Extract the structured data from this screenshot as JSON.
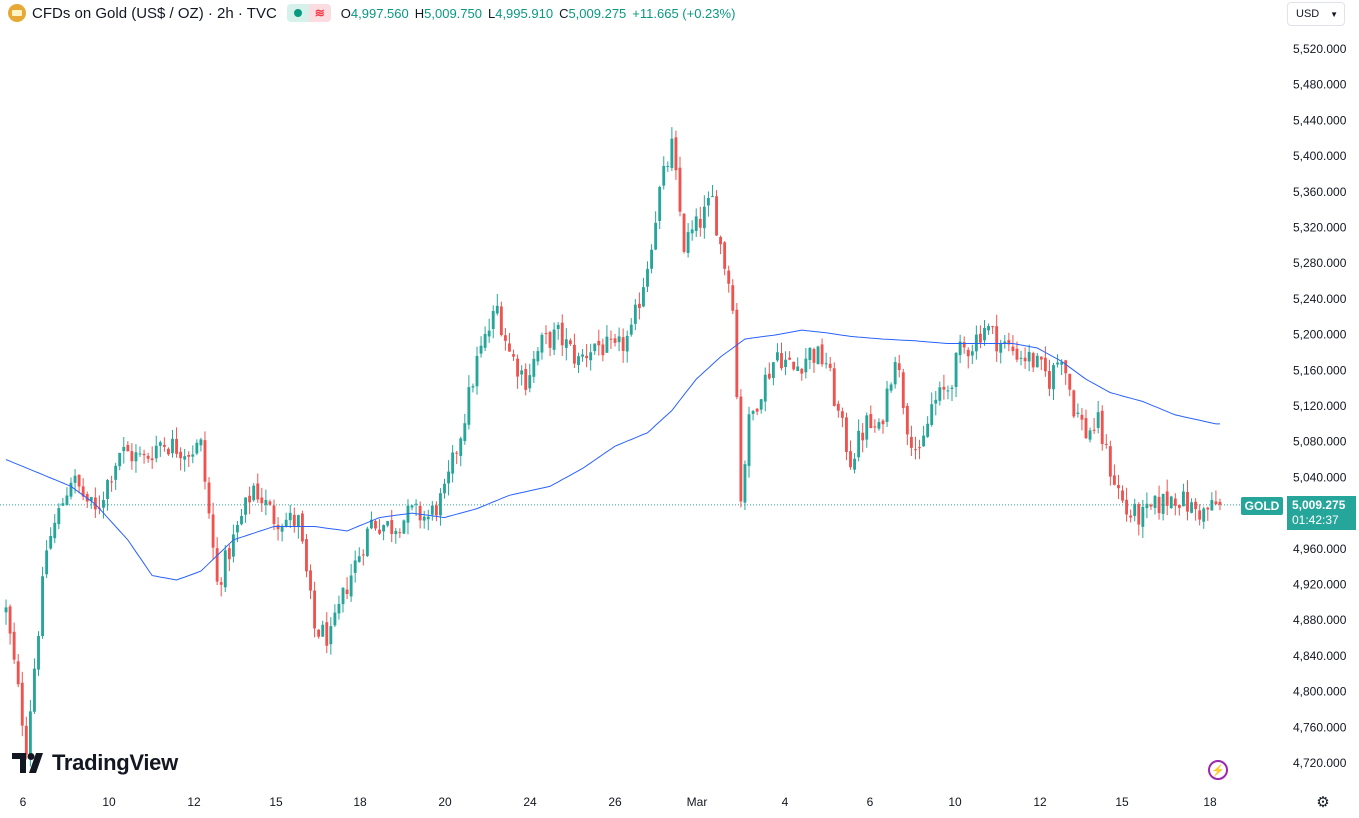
{
  "header": {
    "symbol_title": "CFDs on Gold (US$ / OZ) · 2h · TVC",
    "status_wave": "≋",
    "ohlc": [
      {
        "label": "O",
        "value": "4,997.560"
      },
      {
        "label": "H",
        "value": "5,009.750"
      },
      {
        "label": "L",
        "value": "4,995.910"
      },
      {
        "label": "C",
        "value": "5,009.275"
      }
    ],
    "change": "+11.665 (+0.23%)"
  },
  "currency_button": {
    "label": "USD"
  },
  "last_price": {
    "symbol_tag": "GOLD",
    "price": "5,009.275",
    "countdown": "01:42:37"
  },
  "brand": {
    "name": "TradingView"
  },
  "colors": {
    "up": "#26a69a",
    "down": "#ef5350",
    "ma": "#2962ff",
    "price_line": "#26a69a",
    "axis_text": "#131722"
  },
  "icons": {
    "flash": "flash-icon",
    "settings": "gear-icon"
  },
  "chart_data": {
    "type": "candlestick",
    "title": "CFDs on Gold (US$ / OZ) · 2h · TVC",
    "ylim": [
      4700,
      5540
    ],
    "y_ticks": [
      "4,720.000",
      "4,760.000",
      "4,800.000",
      "4,840.000",
      "4,880.000",
      "4,920.000",
      "4,960.000",
      "5,000.000",
      "5,040.000",
      "5,080.000",
      "5,120.000",
      "5,160.000",
      "5,200.000",
      "5,240.000",
      "5,280.000",
      "5,320.000",
      "5,360.000",
      "5,400.000",
      "5,440.000",
      "5,480.000",
      "5,520.000"
    ],
    "x_ticks": [
      "6",
      "10",
      "12",
      "15",
      "18",
      "20",
      "24",
      "26",
      "Mar",
      "4",
      "6",
      "10",
      "12",
      "15",
      "18"
    ],
    "last_close": 5009.275,
    "close_path": [
      [
        0,
        4890
      ],
      [
        5,
        4740
      ],
      [
        10,
        4960
      ],
      [
        16,
        5040
      ],
      [
        22,
        5000
      ],
      [
        28,
        5070
      ],
      [
        34,
        5060
      ],
      [
        38,
        5080
      ],
      [
        45,
        5070
      ],
      [
        48,
        5075
      ],
      [
        52,
        4920
      ],
      [
        56,
        4970
      ],
      [
        61,
        5030
      ],
      [
        66,
        4995
      ],
      [
        72,
        4990
      ],
      [
        76,
        4870
      ],
      [
        80,
        4860
      ],
      [
        84,
        4920
      ],
      [
        90,
        4990
      ],
      [
        95,
        4985
      ],
      [
        100,
        5000
      ],
      [
        104,
        4995
      ],
      [
        108,
        5020
      ],
      [
        112,
        5090
      ],
      [
        116,
        5170
      ],
      [
        121,
        5230
      ],
      [
        124,
        5180
      ],
      [
        128,
        5150
      ],
      [
        132,
        5190
      ],
      [
        136,
        5200
      ],
      [
        141,
        5170
      ],
      [
        145,
        5190
      ],
      [
        150,
        5180
      ],
      [
        154,
        5200
      ],
      [
        158,
        5280
      ],
      [
        161,
        5360
      ],
      [
        164,
        5410
      ],
      [
        167,
        5300
      ],
      [
        170,
        5320
      ],
      [
        174,
        5350
      ],
      [
        176,
        5300
      ],
      [
        179,
        5240
      ],
      [
        181,
        5020
      ],
      [
        183,
        5100
      ],
      [
        186,
        5140
      ],
      [
        190,
        5180
      ],
      [
        194,
        5160
      ],
      [
        198,
        5180
      ],
      [
        202,
        5170
      ],
      [
        205,
        5110
      ],
      [
        208,
        5060
      ],
      [
        212,
        5100
      ],
      [
        215,
        5090
      ],
      [
        219,
        5180
      ],
      [
        222,
        5100
      ],
      [
        225,
        5060
      ],
      [
        228,
        5120
      ],
      [
        232,
        5140
      ],
      [
        235,
        5180
      ],
      [
        238,
        5190
      ],
      [
        241,
        5210
      ],
      [
        245,
        5190
      ],
      [
        249,
        5180
      ],
      [
        253,
        5170
      ],
      [
        257,
        5150
      ],
      [
        260,
        5180
      ],
      [
        263,
        5120
      ],
      [
        266,
        5090
      ],
      [
        269,
        5100
      ],
      [
        272,
        5050
      ],
      [
        276,
        5000
      ],
      [
        280,
        4995
      ],
      [
        284,
        5010
      ],
      [
        288,
        5020
      ],
      [
        292,
        5005
      ],
      [
        295,
        5000
      ],
      [
        298,
        5009.275
      ]
    ],
    "series": [
      {
        "name": "Moving Average",
        "type": "line",
        "points": [
          [
            0,
            5060
          ],
          [
            16,
            5030
          ],
          [
            22,
            5010
          ],
          [
            30,
            4970
          ],
          [
            36,
            4930
          ],
          [
            42,
            4925
          ],
          [
            48,
            4935
          ],
          [
            56,
            4970
          ],
          [
            66,
            4985
          ],
          [
            76,
            4985
          ],
          [
            84,
            4980
          ],
          [
            92,
            4995
          ],
          [
            100,
            5000
          ],
          [
            108,
            4995
          ],
          [
            116,
            5005
          ],
          [
            124,
            5020
          ],
          [
            134,
            5030
          ],
          [
            142,
            5050
          ],
          [
            150,
            5075
          ],
          [
            158,
            5090
          ],
          [
            164,
            5115
          ],
          [
            170,
            5150
          ],
          [
            176,
            5175
          ],
          [
            182,
            5195
          ],
          [
            190,
            5200
          ],
          [
            196,
            5205
          ],
          [
            202,
            5202
          ],
          [
            208,
            5198
          ],
          [
            216,
            5195
          ],
          [
            224,
            5193
          ],
          [
            232,
            5190
          ],
          [
            240,
            5190
          ],
          [
            248,
            5190
          ],
          [
            254,
            5185
          ],
          [
            260,
            5170
          ],
          [
            266,
            5150
          ],
          [
            272,
            5135
          ],
          [
            280,
            5125
          ],
          [
            288,
            5110
          ],
          [
            298,
            5100
          ]
        ]
      }
    ]
  }
}
